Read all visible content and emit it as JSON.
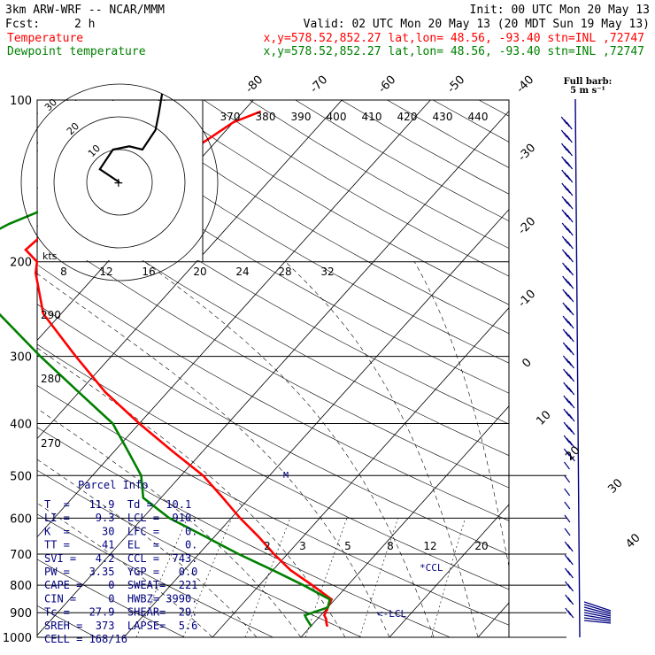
{
  "header": {
    "model": "3km ARW-WRF -- NCAR/MMM",
    "init": "Init: 00 UTC Mon 20 May 13",
    "fcst_label": "Fcst:",
    "fcst_value": "2 h",
    "valid": "Valid: 02 UTC Mon 20 May 13 (20 MDT Sun 19 May 13)",
    "temp_name": "Temperature",
    "temp_loc": "x,y=578.52,852.27   lat,lon= 48.56, -93.40  stn=INL ,72747",
    "dew_name": "Dewpoint temperature",
    "dew_loc": "x,y=578.52,852.27   lat,lon= 48.56, -93.40  stn=INL ,72747"
  },
  "colors": {
    "temperature": "#ff0000",
    "dewpoint": "#008000",
    "wind": "#000080",
    "parcel_text": "#000080",
    "header_red": "#ff0000",
    "header_green": "#008000"
  },
  "wind_legend": {
    "line1": "Full barb:",
    "line2": "5 m s⁻¹"
  },
  "hodograph": {
    "kts_label": "kts",
    "ring_labels": [
      "30",
      "20",
      "10"
    ]
  },
  "parcel_info": {
    "title": "Parcel Info",
    "rows": [
      "T  =   11.9  Td =  10.1",
      "LI =    9.3  LCL =  910.",
      "K  =     30  LFC =    0.",
      "TT =     41  EL  =    0.",
      "SVI =   4.2  CCL =  743.",
      "PW =   3.35  YGP =   0.0",
      "CAPE =    0  SWEAT=  221",
      "CIN =     0  HWBZ= 3990.",
      "Tc =   27.9  SHEAR=  29.",
      "SREH =  373  LAPSE=  5.6",
      "CELL = 168/16"
    ]
  },
  "marks": {
    "ccl": "*CCL",
    "lcl": "<-LCL",
    "m": "M"
  },
  "chart_data": {
    "type": "line",
    "chart_kind": "skew-T log-P sounding",
    "y_axis": {
      "label": "Pressure (hPa)",
      "scale": "log",
      "range": [
        1000,
        100
      ],
      "ticks": [
        100,
        200,
        300,
        400,
        500,
        600,
        700,
        800,
        900,
        1000
      ]
    },
    "isotherm_labels": [
      "-80",
      "-70",
      "-60",
      "-50",
      "-40",
      "-30",
      "-20",
      "-10",
      "0",
      "10",
      "20",
      "30",
      "40"
    ],
    "theta_e_labels": [
      "370",
      "380",
      "390",
      "400",
      "410",
      "420",
      "430",
      "440"
    ],
    "mixing_ratio_labels": [
      "2",
      "3",
      "5",
      "8",
      "12",
      "20"
    ],
    "temp_scale_labels": [
      "8",
      "12",
      "16",
      "20",
      "24",
      "28",
      "32"
    ],
    "left_scale_labels": [
      "290",
      "280",
      "270"
    ],
    "series": [
      {
        "name": "Temperature",
        "pressure": [
          955,
          940,
          925,
          910,
          850,
          800,
          750,
          700,
          650,
          600,
          550,
          500,
          450,
          400,
          350,
          300,
          250,
          210,
          200,
          190,
          175,
          150,
          125,
          110,
          105
        ],
        "values": [
          11.9,
          11.4,
          11.0,
          10.4,
          9.6,
          6.0,
          2.0,
          -1.5,
          -5.0,
          -9.0,
          -13.0,
          -17.5,
          -23.5,
          -30.0,
          -37.0,
          -44.0,
          -52.0,
          -57.0,
          -58.0,
          -60.5,
          -60.0,
          -56.0,
          -52.0,
          -50.0,
          -48.0
        ]
      },
      {
        "name": "Dewpoint temperature",
        "pressure": [
          955,
          925,
          910,
          880,
          850,
          800,
          750,
          700,
          650,
          600,
          550,
          500,
          450,
          400,
          350,
          300,
          250,
          210,
          200,
          190,
          170,
          150,
          125,
          110,
          105
        ],
        "values": [
          10.1,
          8.8,
          8.2,
          10.0,
          9.4,
          5.0,
          0.0,
          -5.5,
          -11.0,
          -17.0,
          -22.0,
          -24.5,
          -28.5,
          -33.0,
          -40.0,
          -48.0,
          -57.0,
          -63.5,
          -66.0,
          -68.0,
          -65.0,
          -60.0,
          -58.0,
          -59.0,
          -62.0
        ]
      }
    ],
    "hodograph_points_kts": [
      [
        0,
        0
      ],
      [
        -6,
        4
      ],
      [
        -2,
        10
      ],
      [
        3,
        11
      ],
      [
        7,
        10
      ],
      [
        9,
        13
      ],
      [
        11,
        16
      ],
      [
        12,
        21
      ],
      [
        13,
        27
      ]
    ]
  }
}
